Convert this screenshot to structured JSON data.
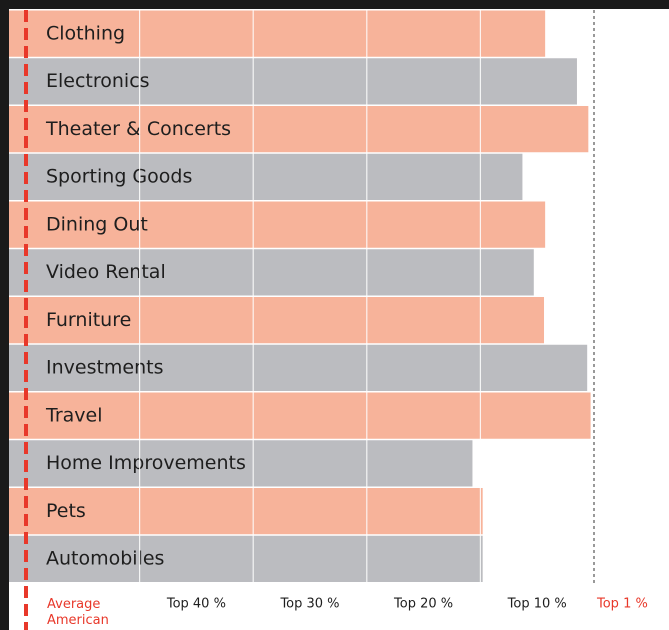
{
  "chart_data": {
    "type": "bar",
    "orientation": "horizontal",
    "categories": [
      "Clothing",
      "Electronics",
      "Theater & Concerts",
      "Sporting Goods",
      "Dining Out",
      "Video Rental",
      "Furniture",
      "Investments",
      "Travel",
      "Home Improvements",
      "Pets",
      "Automobiles"
    ],
    "values": [
      4.57,
      4.85,
      4.95,
      4.37,
      4.57,
      4.47,
      4.56,
      4.94,
      4.97,
      3.93,
      4.02,
      4.02
    ],
    "colors": [
      "#f7b39a",
      "#bbbcc0",
      "#f7b39a",
      "#bbbcc0",
      "#f7b39a",
      "#bbbcc0",
      "#f7b39a",
      "#bbbcc0",
      "#f7b39a",
      "#bbbcc0",
      "#f7b39a",
      "#bbbcc0"
    ],
    "xlim": [
      0,
      5
    ],
    "xticks": [
      {
        "value": 0,
        "label": "Average American"
      },
      {
        "value": 1,
        "label": "Top 40 %"
      },
      {
        "value": 2,
        "label": "Top 30 %"
      },
      {
        "value": 3,
        "label": "Top 20 %"
      },
      {
        "value": 4,
        "label": "Top 10 %"
      },
      {
        "value": 5,
        "label": "Top 1 %"
      }
    ],
    "grid": true
  }
}
